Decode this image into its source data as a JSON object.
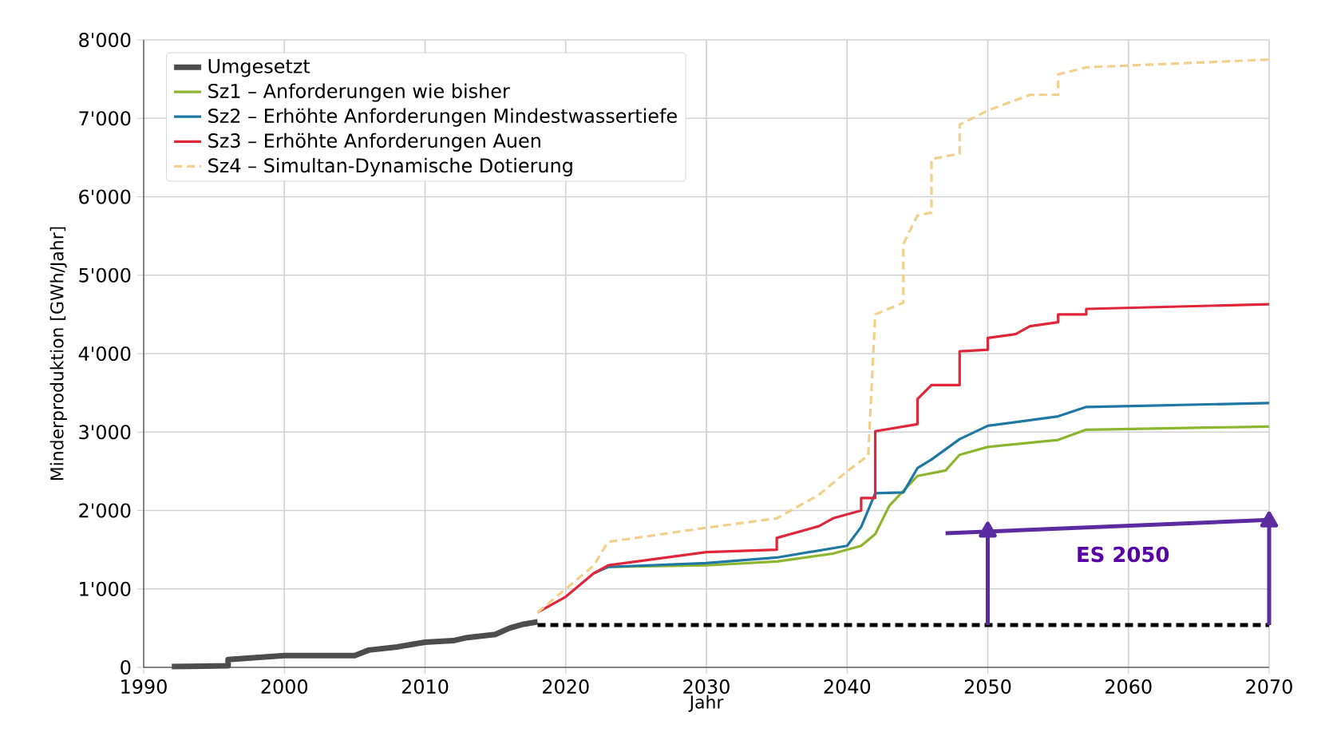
{
  "chart_data": {
    "type": "line",
    "xlabel": "Jahr",
    "ylabel": "Minderproduktion [GWh/Jahr]",
    "xlim": [
      1990,
      2070
    ],
    "ylim": [
      0,
      8000
    ],
    "xticks": [
      1990,
      2000,
      2010,
      2020,
      2030,
      2040,
      2050,
      2060,
      2070
    ],
    "yticks": [
      0,
      {
        "value": 1000,
        "label": "1'000"
      },
      {
        "value": 2000,
        "label": "2'000"
      },
      {
        "value": 3000,
        "label": "3'000"
      },
      {
        "value": 4000,
        "label": "4'000"
      },
      {
        "value": 5000,
        "label": "5'000"
      },
      {
        "value": 6000,
        "label": "6'000"
      },
      {
        "value": 7000,
        "label": "7'000"
      },
      {
        "value": 8000,
        "label": "8'000"
      }
    ],
    "grid": true,
    "legend": "top left",
    "series": [
      {
        "name": "Umgesetzt",
        "color": "#4d4d4d",
        "x": [
          1992,
          1996,
          1996,
          2000,
          2005,
          2006,
          2008,
          2010,
          2012,
          2013,
          2015,
          2016,
          2017,
          2018
        ],
        "values": [
          10,
          20,
          100,
          150,
          150,
          220,
          260,
          320,
          340,
          380,
          420,
          500,
          550,
          580
        ]
      },
      {
        "name": "Sz1 – Anforderungen wie bisher",
        "color": "#8db52f",
        "x": [
          2022,
          2023,
          2030,
          2035,
          2039,
          2041,
          2042,
          2043,
          2045,
          2047,
          2048,
          2050,
          2055,
          2057,
          2070
        ],
        "values": [
          1200,
          1280,
          1300,
          1350,
          1450,
          1550,
          1700,
          2060,
          2440,
          2510,
          2710,
          2810,
          2900,
          3030,
          3070
        ]
      },
      {
        "name": "Sz2 – Erhöhte Anforderungen Mindestwassertiefe",
        "color": "#1f77a4",
        "x": [
          2022,
          2023,
          2030,
          2035,
          2040,
          2041,
          2042,
          2044,
          2045,
          2046,
          2048,
          2050,
          2055,
          2057,
          2070
        ],
        "values": [
          1200,
          1280,
          1330,
          1400,
          1550,
          1790,
          2220,
          2230,
          2540,
          2650,
          2910,
          3080,
          3200,
          3320,
          3370
        ]
      },
      {
        "name": "Sz3 – Erhöhte Anforderungen Auen",
        "color": "#e0263a",
        "x": [
          2018,
          2019,
          2020,
          2021,
          2022,
          2023,
          2030,
          2035,
          2035,
          2038,
          2039,
          2041,
          2041,
          2042,
          2042,
          2045,
          2045,
          2046,
          2048,
          2048,
          2050,
          2050,
          2052,
          2053,
          2055,
          2055,
          2057,
          2057,
          2070
        ],
        "values": [
          700,
          800,
          900,
          1050,
          1200,
          1300,
          1470,
          1500,
          1650,
          1800,
          1900,
          2000,
          2160,
          2160,
          3010,
          3100,
          3420,
          3600,
          3600,
          4030,
          4050,
          4200,
          4250,
          4350,
          4400,
          4500,
          4500,
          4570,
          4630
        ]
      },
      {
        "name": "Sz4 – Simultan-Dynamische Dotierung",
        "color": "#f2cf8a",
        "line_style": "dashed",
        "x": [
          2018,
          2020,
          2022,
          2023,
          2030,
          2035,
          2038,
          2040,
          2041.5,
          2042,
          2044,
          2044,
          2045,
          2046,
          2046,
          2048,
          2048,
          2050,
          2053,
          2055,
          2055,
          2057,
          2070
        ],
        "values": [
          700,
          1000,
          1300,
          1600,
          1780,
          1900,
          2200,
          2500,
          2700,
          4500,
          4650,
          5400,
          5760,
          5800,
          6480,
          6550,
          6920,
          7100,
          7300,
          7300,
          7560,
          7650,
          7750
        ]
      },
      {
        "color": "#000000",
        "line_style": "dashed",
        "x": [
          2018,
          2070
        ],
        "values": [
          540,
          540
        ]
      },
      {
        "color": "#5b2c9f",
        "x": [
          2047,
          2070
        ],
        "values": [
          1710,
          1880
        ]
      },
      {
        "color": "#5b2c9f",
        "marker": "triangle",
        "x": [
          2050,
          2050
        ],
        "values": [
          540,
          1730
        ]
      },
      {
        "color": "#5b2c9f",
        "marker": "triangle",
        "x": [
          2070,
          2070
        ],
        "values": [
          540,
          1860
        ]
      }
    ],
    "annotations": [
      "ES 2050"
    ]
  }
}
